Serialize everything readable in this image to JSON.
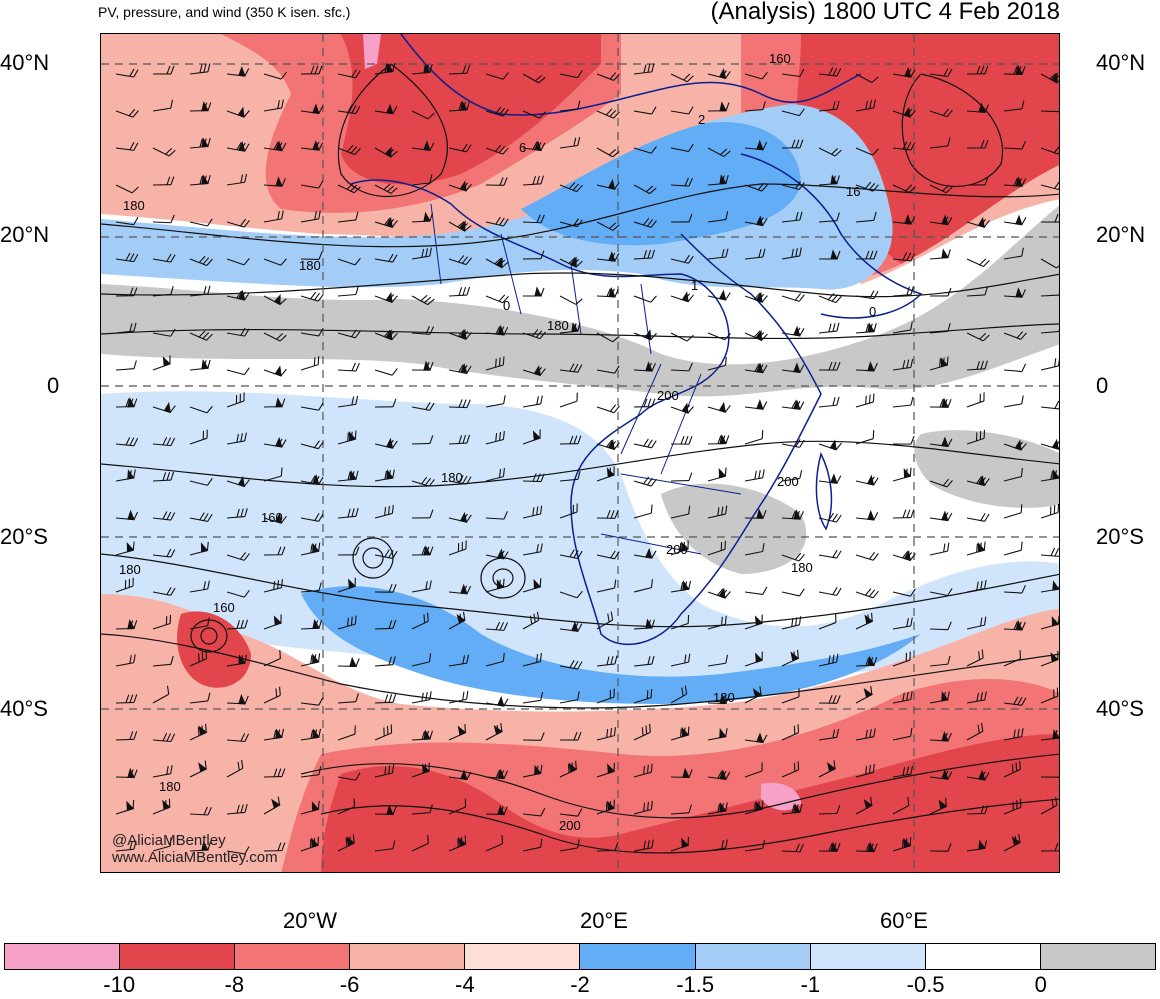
{
  "header": {
    "left_title": "PV, pressure, and wind (350 K isen. sfc.)",
    "right_title": "(Analysis) 1800 UTC 4 Feb 2018"
  },
  "axes": {
    "lat_labels": [
      "40°N",
      "20°N",
      "0",
      "20°S",
      "40°S"
    ],
    "lon_labels": [
      "20°W",
      "20°E",
      "60°E"
    ]
  },
  "credit": {
    "handle": "@AliciaMBentley",
    "site": "www.AliciaMBentley.com"
  },
  "contour_labels": [
    "160",
    "2",
    "6",
    "16",
    "180",
    "180",
    "0",
    "180",
    "1",
    "0",
    "200",
    "180",
    "200",
    "160",
    "200",
    "180",
    "180",
    "160",
    "180",
    "200",
    "180"
  ],
  "colorbar": {
    "colors": [
      "#f7a1c8",
      "#e3454c",
      "#f27474",
      "#f8b3a8",
      "#fddfd6",
      "#62adf5",
      "#a3cdf7",
      "#d0e5fb",
      "#ffffff",
      "#c8c8c8"
    ],
    "labels": [
      "-10",
      "-8",
      "-6",
      "-4",
      "-2",
      "-1.5",
      "-1",
      "-0.5",
      "0"
    ]
  },
  "legend_colors": {
    "strong_negative": "#e3454c",
    "negative": "#f8b3a8",
    "weak_positive": "#a3cdf7",
    "positive_high": "#c8c8c8",
    "coastline": "#0a1f8f"
  }
}
